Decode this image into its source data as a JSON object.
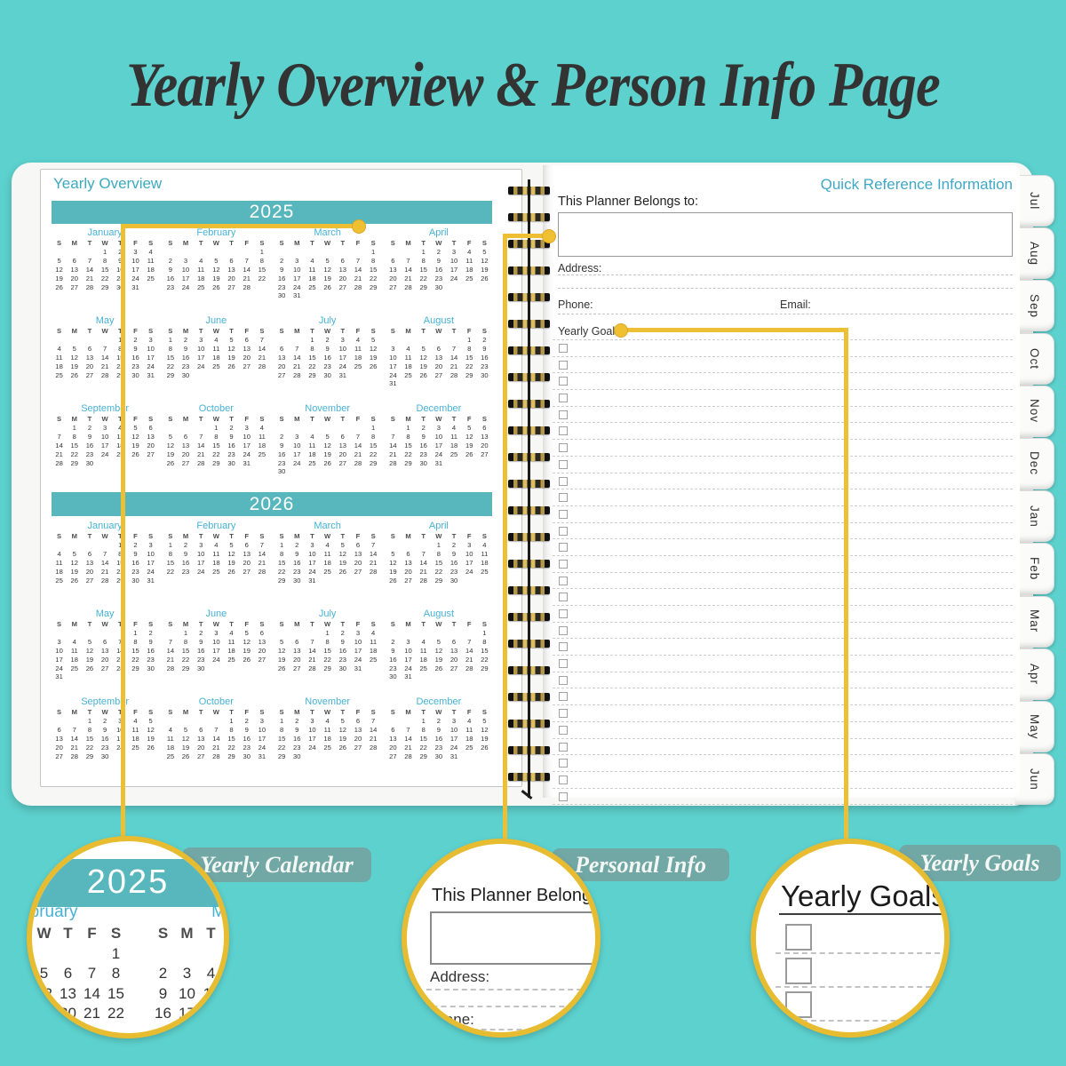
{
  "title": "Yearly Overview & Person Info Page",
  "planner": {
    "left_page": {
      "header": "Yearly Overview",
      "weekdays": [
        "S",
        "M",
        "T",
        "W",
        "T",
        "F",
        "S"
      ],
      "years": [
        {
          "year": "2025",
          "months": [
            {
              "name": "January",
              "start": 3,
              "days": 31
            },
            {
              "name": "February",
              "start": 6,
              "days": 28
            },
            {
              "name": "March",
              "start": 6,
              "days": 31
            },
            {
              "name": "April",
              "start": 2,
              "days": 30
            },
            {
              "name": "May",
              "start": 4,
              "days": 31
            },
            {
              "name": "June",
              "start": 0,
              "days": 30
            },
            {
              "name": "July",
              "start": 2,
              "days": 31
            },
            {
              "name": "August",
              "start": 5,
              "days": 31
            },
            {
              "name": "September",
              "start": 1,
              "days": 30
            },
            {
              "name": "October",
              "start": 3,
              "days": 31
            },
            {
              "name": "November",
              "start": 6,
              "days": 30
            },
            {
              "name": "December",
              "start": 1,
              "days": 31
            }
          ]
        },
        {
          "year": "2026",
          "months": [
            {
              "name": "January",
              "start": 4,
              "days": 31
            },
            {
              "name": "February",
              "start": 0,
              "days": 28
            },
            {
              "name": "March",
              "start": 0,
              "days": 31
            },
            {
              "name": "April",
              "start": 3,
              "days": 30
            },
            {
              "name": "May",
              "start": 5,
              "days": 31
            },
            {
              "name": "June",
              "start": 1,
              "days": 30
            },
            {
              "name": "July",
              "start": 3,
              "days": 31
            },
            {
              "name": "August",
              "start": 6,
              "days": 31
            },
            {
              "name": "September",
              "start": 2,
              "days": 30
            },
            {
              "name": "October",
              "start": 4,
              "days": 31
            },
            {
              "name": "November",
              "start": 0,
              "days": 30
            },
            {
              "name": "December",
              "start": 2,
              "days": 31
            }
          ]
        }
      ]
    },
    "right_page": {
      "header": "Quick Reference Information",
      "belongs_label": "This Planner Belongs to:",
      "address_label": "Address:",
      "phone_label": "Phone:",
      "email_label": "Email:",
      "goals_label": "Yearly Goals:",
      "goal_row_count": 28
    },
    "tabs": [
      "Jul",
      "Aug",
      "Sep",
      "Oct",
      "Nov",
      "Dec",
      "Jan",
      "Feb",
      "Mar",
      "Apr",
      "May",
      "Jun"
    ]
  },
  "callouts": {
    "calendar": {
      "badge": "Yearly Calendar",
      "zoom_year": "2025"
    },
    "personal": {
      "badge": "Personal Info"
    },
    "goals": {
      "badge": "Yearly Goals",
      "checkbox_count": 3
    }
  },
  "colors": {
    "background": "#5dd1ce",
    "year_banner": "#58b6bd",
    "accent_text": "#3fa8c6",
    "month_name_text": "#47b2d4",
    "callout_line": "#edbf35",
    "title_text": "#333333"
  }
}
